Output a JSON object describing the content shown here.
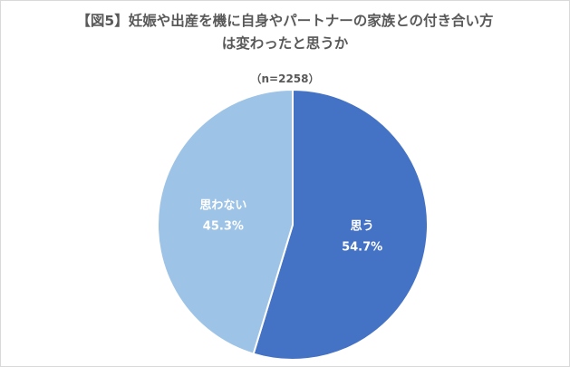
{
  "chart_data": {
    "type": "pie",
    "title_lines": [
      "【図5】妊娠や出産を機に自身やパートナーの家族との付き合い方",
      "は変わったと思うか"
    ],
    "subtitle": "（n=2258）",
    "start_angle_deg": 0,
    "direction": "clockwise",
    "slices": [
      {
        "label": "思う",
        "value": 54.7,
        "value_label": "54.7%",
        "color": "#4472c4"
      },
      {
        "label": "思わない",
        "value": 45.3,
        "value_label": "45.3%",
        "color": "#9dc3e6"
      }
    ]
  }
}
